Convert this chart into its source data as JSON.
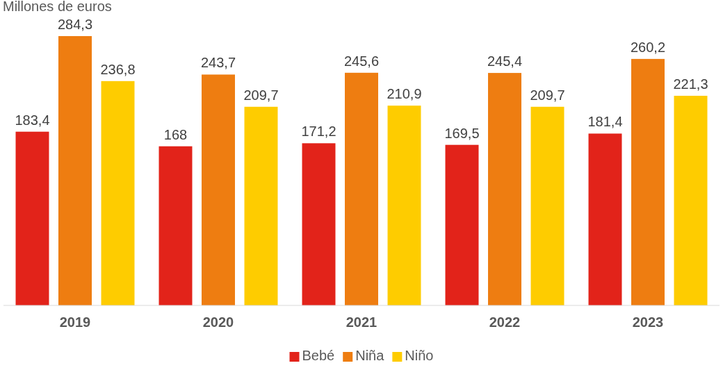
{
  "chart_data": {
    "type": "bar",
    "ylabel": "Millones de euros",
    "categories": [
      "2019",
      "2020",
      "2021",
      "2022",
      "2023"
    ],
    "legend": "bottom",
    "series": [
      {
        "name": "Bebé",
        "color": "#e2231a",
        "values": [
          183.4,
          168,
          171.2,
          169.5,
          181.4
        ],
        "value_labels": [
          "183,4",
          "168",
          "171,2",
          "169,5",
          "181,4"
        ]
      },
      {
        "name": "Niña",
        "color": "#ee7d11",
        "values": [
          284.3,
          243.7,
          245.6,
          245.4,
          260.2
        ],
        "value_labels": [
          "284,3",
          "243,7",
          "245,6",
          "245,4",
          "260,2"
        ]
      },
      {
        "name": "Niño",
        "color": "#fecc00",
        "values": [
          236.8,
          209.7,
          210.9,
          209.7,
          221.3
        ],
        "value_labels": [
          "236,8",
          "209,7",
          "210,9",
          "209,7",
          "221,3"
        ]
      }
    ]
  }
}
